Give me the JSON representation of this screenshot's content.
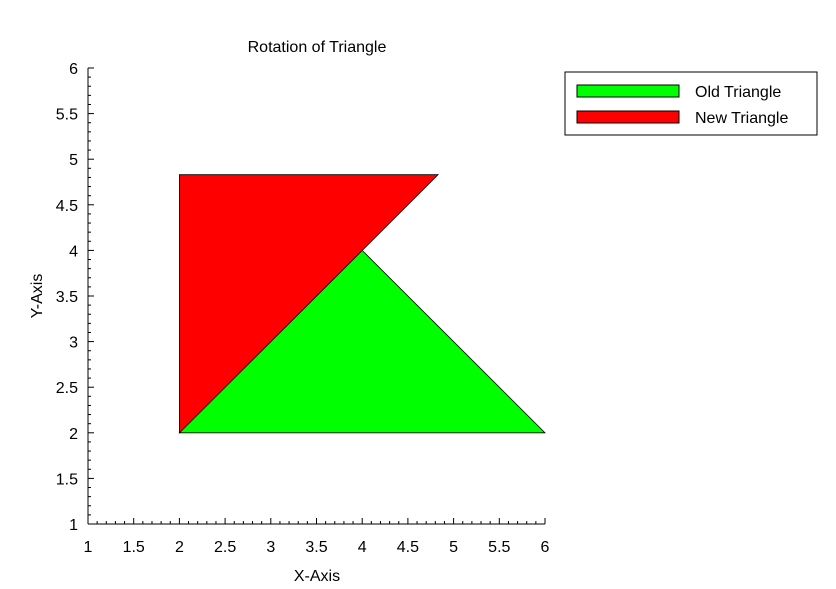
{
  "chart_data": {
    "type": "area",
    "title": "Rotation of Triangle",
    "xlabel": "X-Axis",
    "ylabel": "Y-Axis",
    "xlim": [
      1,
      6
    ],
    "ylim": [
      1,
      6
    ],
    "x_ticks": [
      "1",
      "1.5",
      "2",
      "2.5",
      "3",
      "3.5",
      "4",
      "4.5",
      "5",
      "5.5",
      "6"
    ],
    "y_ticks": [
      "1",
      "1.5",
      "2",
      "2.5",
      "3",
      "3.5",
      "4",
      "4.5",
      "5",
      "5.5",
      "6"
    ],
    "grid": false,
    "legend_position": "top-right",
    "series": [
      {
        "name": "Old Triangle",
        "color": "#00ff00",
        "points": [
          [
            2,
            2
          ],
          [
            4,
            4
          ],
          [
            6,
            2
          ]
        ]
      },
      {
        "name": "New Triangle",
        "color": "#ff0000",
        "points": [
          [
            2,
            2
          ],
          [
            2,
            4.83
          ],
          [
            4.83,
            4.83
          ]
        ]
      }
    ]
  }
}
